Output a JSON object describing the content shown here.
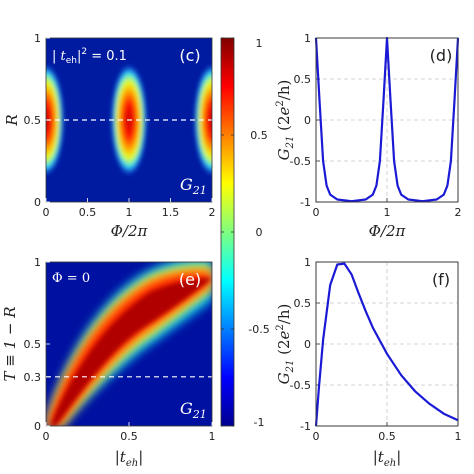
{
  "figure": {
    "colorbar": {
      "ticks": [
        {
          "value": 1,
          "label": "1"
        },
        {
          "value": 0.5,
          "label": "0.5"
        },
        {
          "value": 0,
          "label": "0"
        },
        {
          "value": -0.5,
          "label": "-0.5"
        },
        {
          "value": -1,
          "label": "-1"
        }
      ],
      "colormap": "jet",
      "range": [
        -1,
        1
      ]
    }
  },
  "chart_data": [
    {
      "type": "heatmap",
      "panel_label": "(c)",
      "annotation": "|t_eh|^2 = 0.1",
      "annotation_parts": {
        "abs_left": "| ",
        "t": "t",
        "sub": "eh",
        "abs_right": "|",
        "sup": "2",
        "rest": " = 0.1"
      },
      "map_label": "G21",
      "map_label_parts": {
        "main": "G",
        "sub": "21"
      },
      "xlabel": "Φ/2π",
      "ylabel": "R",
      "xlim": [
        0,
        2
      ],
      "ylim": [
        0,
        1
      ],
      "xticks": [
        "0",
        "0.5",
        "1",
        "1.5",
        "2"
      ],
      "yticks": [
        "0",
        "0.5",
        "1"
      ],
      "dashed_line_y": 0.5,
      "colorbar_range": [
        -1,
        1
      ],
      "grid": false
    },
    {
      "type": "line",
      "panel_label": "(d)",
      "xlabel": "Φ/2π",
      "ylabel": "G21 (2e^2/h)",
      "ylabel_parts": {
        "main": "G",
        "sub": "21",
        "open": " (2",
        "e": "e",
        "sup": "2",
        "close": "/h)"
      },
      "xlim": [
        0,
        2
      ],
      "ylim": [
        -1,
        1
      ],
      "xticks": [
        "0",
        "1",
        "2"
      ],
      "yticks": [
        "-1",
        "-0.5",
        "0",
        "0.5",
        "1"
      ],
      "grid": true,
      "series": [
        {
          "x": [
            0,
            0.05,
            0.1,
            0.15,
            0.2,
            0.3,
            0.5,
            0.7,
            0.8,
            0.85,
            0.9,
            0.95,
            1,
            1.05,
            1.1,
            1.15,
            1.2,
            1.3,
            1.5,
            1.7,
            1.8,
            1.85,
            1.9,
            1.95,
            2
          ],
          "y": [
            1,
            0.22,
            -0.5,
            -0.8,
            -0.91,
            -0.97,
            -0.99,
            -0.97,
            -0.91,
            -0.8,
            -0.5,
            0.22,
            1,
            0.22,
            -0.5,
            -0.8,
            -0.91,
            -0.97,
            -0.99,
            -0.97,
            -0.91,
            -0.8,
            -0.5,
            0.22,
            1
          ],
          "color": "#1a1ad6"
        }
      ]
    },
    {
      "type": "heatmap",
      "panel_label": "(e)",
      "annotation": "Φ = 0",
      "map_label": "G21",
      "map_label_parts": {
        "main": "G",
        "sub": "21"
      },
      "xlabel": "|t_eh|",
      "xlabel_parts": {
        "abs_left": "|",
        "t": "t",
        "sub": "eh",
        "abs_right": "|"
      },
      "ylabel": "T ≡ 1 − R",
      "xlim": [
        0,
        1
      ],
      "ylim": [
        0,
        1
      ],
      "xticks": [
        "0",
        "0.5",
        "1"
      ],
      "yticks": [
        "0",
        "0.3",
        "0.5",
        "1"
      ],
      "ytick_values": [
        0,
        0.3,
        0.5,
        1
      ],
      "dashed_line_y": 0.3,
      "colorbar_range": [
        -1,
        1
      ],
      "grid": false
    },
    {
      "type": "line",
      "panel_label": "(f)",
      "xlabel": "|t_eh|",
      "xlabel_parts": {
        "abs_left": "|",
        "t": "t",
        "sub": "eh",
        "abs_right": "|"
      },
      "ylabel": "G21 (2e^2/h)",
      "ylabel_parts": {
        "main": "G",
        "sub": "21",
        "open": " (2",
        "e": "e",
        "sup": "2",
        "close": "/h)"
      },
      "xlim": [
        0,
        1
      ],
      "ylim": [
        -1,
        1
      ],
      "xticks": [
        "0",
        "0.5",
        "1"
      ],
      "yticks": [
        "-1",
        "-0.5",
        "0",
        "0.5",
        "1"
      ],
      "grid": true,
      "series": [
        {
          "x": [
            0,
            0.02,
            0.05,
            0.1,
            0.15,
            0.2,
            0.25,
            0.3,
            0.35,
            0.4,
            0.5,
            0.6,
            0.7,
            0.8,
            0.9,
            1
          ],
          "y": [
            -1,
            -0.55,
            0.05,
            0.72,
            0.97,
            0.98,
            0.85,
            0.62,
            0.4,
            0.2,
            -0.12,
            -0.38,
            -0.58,
            -0.73,
            -0.85,
            -0.93
          ],
          "color": "#1a1ad6"
        }
      ]
    }
  ]
}
